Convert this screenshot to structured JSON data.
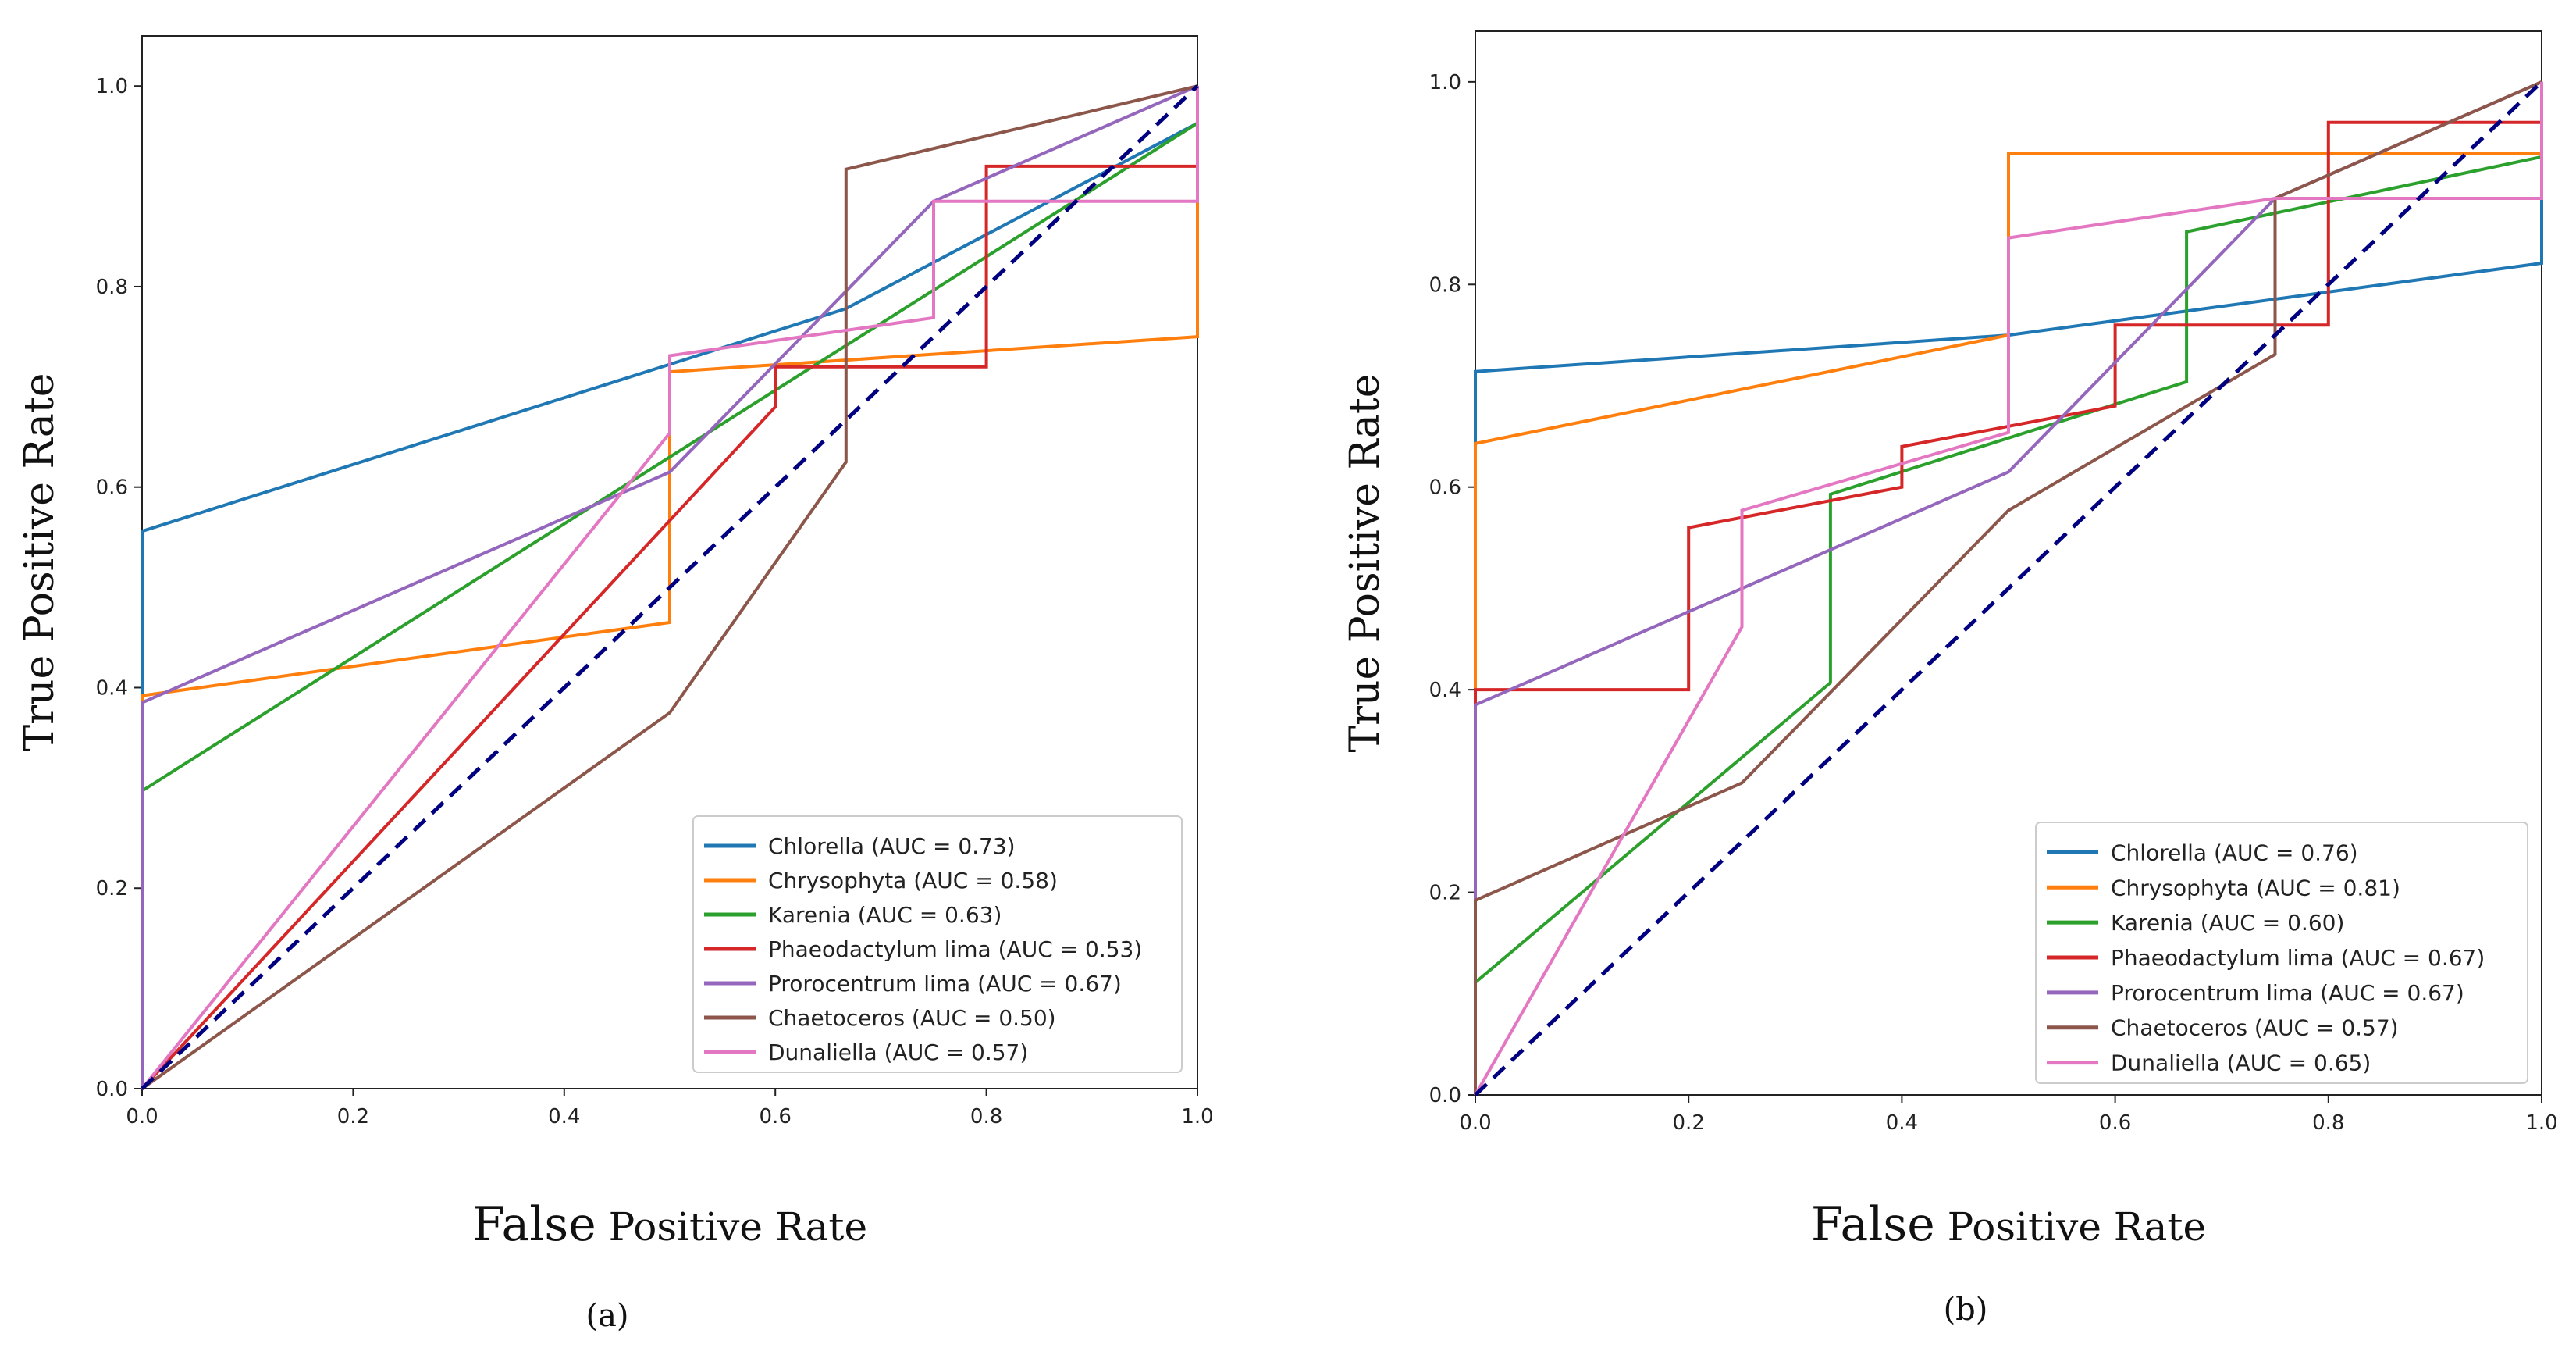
{
  "chart_data": [
    {
      "type": "line",
      "panel_label": "(a)",
      "xlabel_large": "False",
      "xlabel_rest": " Positive Rate",
      "ylabel": "True Positive Rate",
      "xlim": [
        0,
        1
      ],
      "ylim": [
        0,
        1.05
      ],
      "xticks": [
        "0.0",
        "0.2",
        "0.4",
        "0.6",
        "0.8",
        "1.0"
      ],
      "yticks": [
        "0.0",
        "0.2",
        "0.4",
        "0.6",
        "0.8",
        "1.0"
      ],
      "legend_position": "lower-right",
      "diagonal": {
        "color": "#000080",
        "style": "dashed"
      },
      "series": [
        {
          "name": "Chlorella (AUC = 0.73)",
          "color": "#1f77b4",
          "points": [
            [
              0,
              0
            ],
            [
              0,
              0.556
            ],
            [
              0.667,
              0.778
            ],
            [
              1,
              0.963
            ]
          ]
        },
        {
          "name": "Chrysophyta (AUC = 0.58)",
          "color": "#ff7f0e",
          "points": [
            [
              0,
              0
            ],
            [
              0,
              0.392
            ],
            [
              0.5,
              0.465
            ],
            [
              0.5,
              0.715
            ],
            [
              1,
              0.75
            ],
            [
              1,
              1.0
            ]
          ]
        },
        {
          "name": "Karenia (AUC = 0.63)",
          "color": "#2ca02c",
          "points": [
            [
              0,
              0
            ],
            [
              0,
              0.297
            ],
            [
              1,
              0.963
            ],
            [
              1,
              1.0
            ]
          ]
        },
        {
          "name": "Phaeodactylum lima (AUC = 0.53)",
          "color": "#d62728",
          "points": [
            [
              0,
              0
            ],
            [
              0.6,
              0.68
            ],
            [
              0.6,
              0.72
            ],
            [
              0.8,
              0.72
            ],
            [
              0.8,
              0.92
            ],
            [
              1,
              0.92
            ],
            [
              1,
              1.0
            ]
          ]
        },
        {
          "name": "Prorocentrum lima (AUC = 0.67)",
          "color": "#9467bd",
          "points": [
            [
              0,
              0
            ],
            [
              0,
              0.385
            ],
            [
              0.5,
              0.615
            ],
            [
              0.75,
              0.885
            ],
            [
              1,
              1.0
            ]
          ]
        },
        {
          "name": "Chaetoceros (AUC = 0.50)",
          "color": "#8c564b",
          "points": [
            [
              0,
              0
            ],
            [
              0.5,
              0.375
            ],
            [
              0.667,
              0.625
            ],
            [
              0.667,
              0.917
            ],
            [
              1,
              1.0
            ]
          ]
        },
        {
          "name": "Dunaliella (AUC = 0.57)",
          "color": "#e377c2",
          "points": [
            [
              0,
              0
            ],
            [
              0.5,
              0.654
            ],
            [
              0.5,
              0.731
            ],
            [
              0.75,
              0.769
            ],
            [
              0.75,
              0.885
            ],
            [
              1,
              0.885
            ],
            [
              1,
              1.0
            ]
          ]
        }
      ]
    },
    {
      "type": "line",
      "panel_label": "(b)",
      "xlabel_large": "False",
      "xlabel_rest": " Positive Rate",
      "ylabel": "True Positive Rate",
      "xlim": [
        0,
        1
      ],
      "ylim": [
        0,
        1.05
      ],
      "xticks": [
        "0.0",
        "0.2",
        "0.4",
        "0.6",
        "0.8",
        "1.0"
      ],
      "yticks": [
        "0.0",
        "0.2",
        "0.4",
        "0.6",
        "0.8",
        "1.0"
      ],
      "legend_position": "lower-right",
      "diagonal": {
        "color": "#000080",
        "style": "dashed"
      },
      "series": [
        {
          "name": "Chlorella (AUC = 0.76)",
          "color": "#1f77b4",
          "points": [
            [
              0,
              0
            ],
            [
              0,
              0.714
            ],
            [
              0.5,
              0.75
            ],
            [
              1,
              0.821
            ],
            [
              1,
              1.0
            ]
          ]
        },
        {
          "name": "Chrysophyta (AUC = 0.81)",
          "color": "#ff7f0e",
          "points": [
            [
              0,
              0
            ],
            [
              0,
              0.643
            ],
            [
              0.5,
              0.75
            ],
            [
              0.5,
              0.929
            ],
            [
              1,
              0.929
            ],
            [
              1,
              1.0
            ]
          ]
        },
        {
          "name": "Karenia (AUC = 0.60)",
          "color": "#2ca02c",
          "points": [
            [
              0,
              0
            ],
            [
              0,
              0.111
            ],
            [
              0.333,
              0.407
            ],
            [
              0.333,
              0.593
            ],
            [
              0.667,
              0.704
            ],
            [
              0.667,
              0.852
            ],
            [
              1,
              0.926
            ],
            [
              1,
              1.0
            ]
          ]
        },
        {
          "name": "Phaeodactylum lima (AUC = 0.67)",
          "color": "#d62728",
          "points": [
            [
              0,
              0
            ],
            [
              0,
              0.4
            ],
            [
              0.2,
              0.4
            ],
            [
              0.2,
              0.56
            ],
            [
              0.4,
              0.6
            ],
            [
              0.4,
              0.64
            ],
            [
              0.6,
              0.68
            ],
            [
              0.6,
              0.76
            ],
            [
              0.8,
              0.76
            ],
            [
              0.8,
              0.96
            ],
            [
              1,
              0.96
            ],
            [
              1,
              1.0
            ]
          ]
        },
        {
          "name": "Prorocentrum lima (AUC = 0.67)",
          "color": "#9467bd",
          "points": [
            [
              0,
              0
            ],
            [
              0,
              0.385
            ],
            [
              0.5,
              0.615
            ],
            [
              0.75,
              0.885
            ],
            [
              1,
              1.0
            ]
          ]
        },
        {
          "name": "Chaetoceros (AUC = 0.57)",
          "color": "#8c564b",
          "points": [
            [
              0,
              0
            ],
            [
              0,
              0.192
            ],
            [
              0.25,
              0.308
            ],
            [
              0.5,
              0.577
            ],
            [
              0.75,
              0.731
            ],
            [
              0.75,
              0.885
            ],
            [
              1,
              1.0
            ]
          ]
        },
        {
          "name": "Dunaliella (AUC = 0.65)",
          "color": "#e377c2",
          "points": [
            [
              0,
              0
            ],
            [
              0.25,
              0.462
            ],
            [
              0.25,
              0.577
            ],
            [
              0.5,
              0.654
            ],
            [
              0.5,
              0.846
            ],
            [
              0.75,
              0.885
            ],
            [
              1,
              0.885
            ],
            [
              1,
              1.0
            ]
          ]
        }
      ]
    }
  ]
}
